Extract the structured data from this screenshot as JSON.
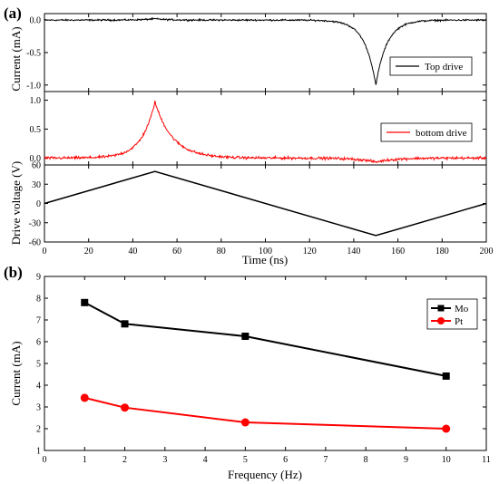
{
  "panel_labels": {
    "a": "(a)",
    "b": "(b)"
  },
  "chart_data": [
    {
      "type": "line",
      "title": "",
      "xlabel": "Time (ns)",
      "ylabel": "Current (mA)",
      "xlim": [
        0,
        200
      ],
      "ylim": [
        -1.1,
        0.1
      ],
      "yticks": [
        "0.0",
        "-0.5",
        "-1.0"
      ],
      "ytick_values": [
        0,
        -0.5,
        -1.0
      ],
      "series": [
        {
          "name": "Top drive",
          "color": "#000000",
          "baseline": 0,
          "peak_x": 150,
          "peak_y": -1.0,
          "rise_tau": 5,
          "fall_tau": 5
        }
      ],
      "legend": "right"
    },
    {
      "type": "line",
      "title": "",
      "xlabel": "Time (ns)",
      "ylabel": "",
      "xlim": [
        0,
        200
      ],
      "ylim": [
        -0.12,
        1.15
      ],
      "yticks": [
        "1.0",
        "0.5",
        "0.0"
      ],
      "ytick_values": [
        1.0,
        0.5,
        0.0
      ],
      "series": [
        {
          "name": "bottom drive",
          "color": "#ff0000",
          "baseline": 0,
          "peak_x": 50,
          "peak_y": 0.97,
          "rise_tau": 6,
          "fall_tau": 8,
          "dip_x": 150,
          "dip_y": -0.07
        }
      ],
      "legend": "right"
    },
    {
      "type": "line",
      "title": "",
      "xlabel": "Time (ns)",
      "ylabel": "Drive voltage (V)",
      "xlim": [
        0,
        200
      ],
      "ylim": [
        -60,
        60
      ],
      "xticks": [
        "0",
        "20",
        "40",
        "60",
        "80",
        "100",
        "120",
        "140",
        "160",
        "180",
        "200"
      ],
      "xtick_values": [
        0,
        20,
        40,
        60,
        80,
        100,
        120,
        140,
        160,
        180,
        200
      ],
      "yticks": [
        "60",
        "30",
        "0",
        "-30",
        "-60"
      ],
      "ytick_values": [
        60,
        30,
        0,
        -30,
        -60
      ],
      "series": [
        {
          "name": "",
          "color": "#000000",
          "x": [
            0,
            50,
            150,
            200
          ],
          "y": [
            0,
            50,
            -50,
            0
          ]
        }
      ]
    },
    {
      "type": "line",
      "title": "",
      "xlabel": "Frequency (Hz)",
      "ylabel": "Current (mA)",
      "xlim": [
        0,
        11
      ],
      "ylim": [
        1,
        9
      ],
      "xticks": [
        "0",
        "1",
        "2",
        "3",
        "4",
        "5",
        "6",
        "7",
        "8",
        "9",
        "10",
        "11"
      ],
      "xtick_values": [
        0,
        1,
        2,
        3,
        4,
        5,
        6,
        7,
        8,
        9,
        10,
        11
      ],
      "yticks": [
        "1",
        "2",
        "3",
        "4",
        "5",
        "6",
        "7",
        "8",
        "9"
      ],
      "ytick_values": [
        1,
        2,
        3,
        4,
        5,
        6,
        7,
        8,
        9
      ],
      "series": [
        {
          "name": "Mo",
          "color": "#000000",
          "marker": "square",
          "x": [
            1,
            2,
            5,
            10
          ],
          "y": [
            7.8,
            6.82,
            6.25,
            4.42
          ]
        },
        {
          "name": "Pt",
          "color": "#ff0000",
          "marker": "circle",
          "x": [
            1,
            2,
            5,
            10
          ],
          "y": [
            3.42,
            2.97,
            2.29,
            2.0
          ]
        }
      ],
      "legend": "top-right"
    }
  ]
}
